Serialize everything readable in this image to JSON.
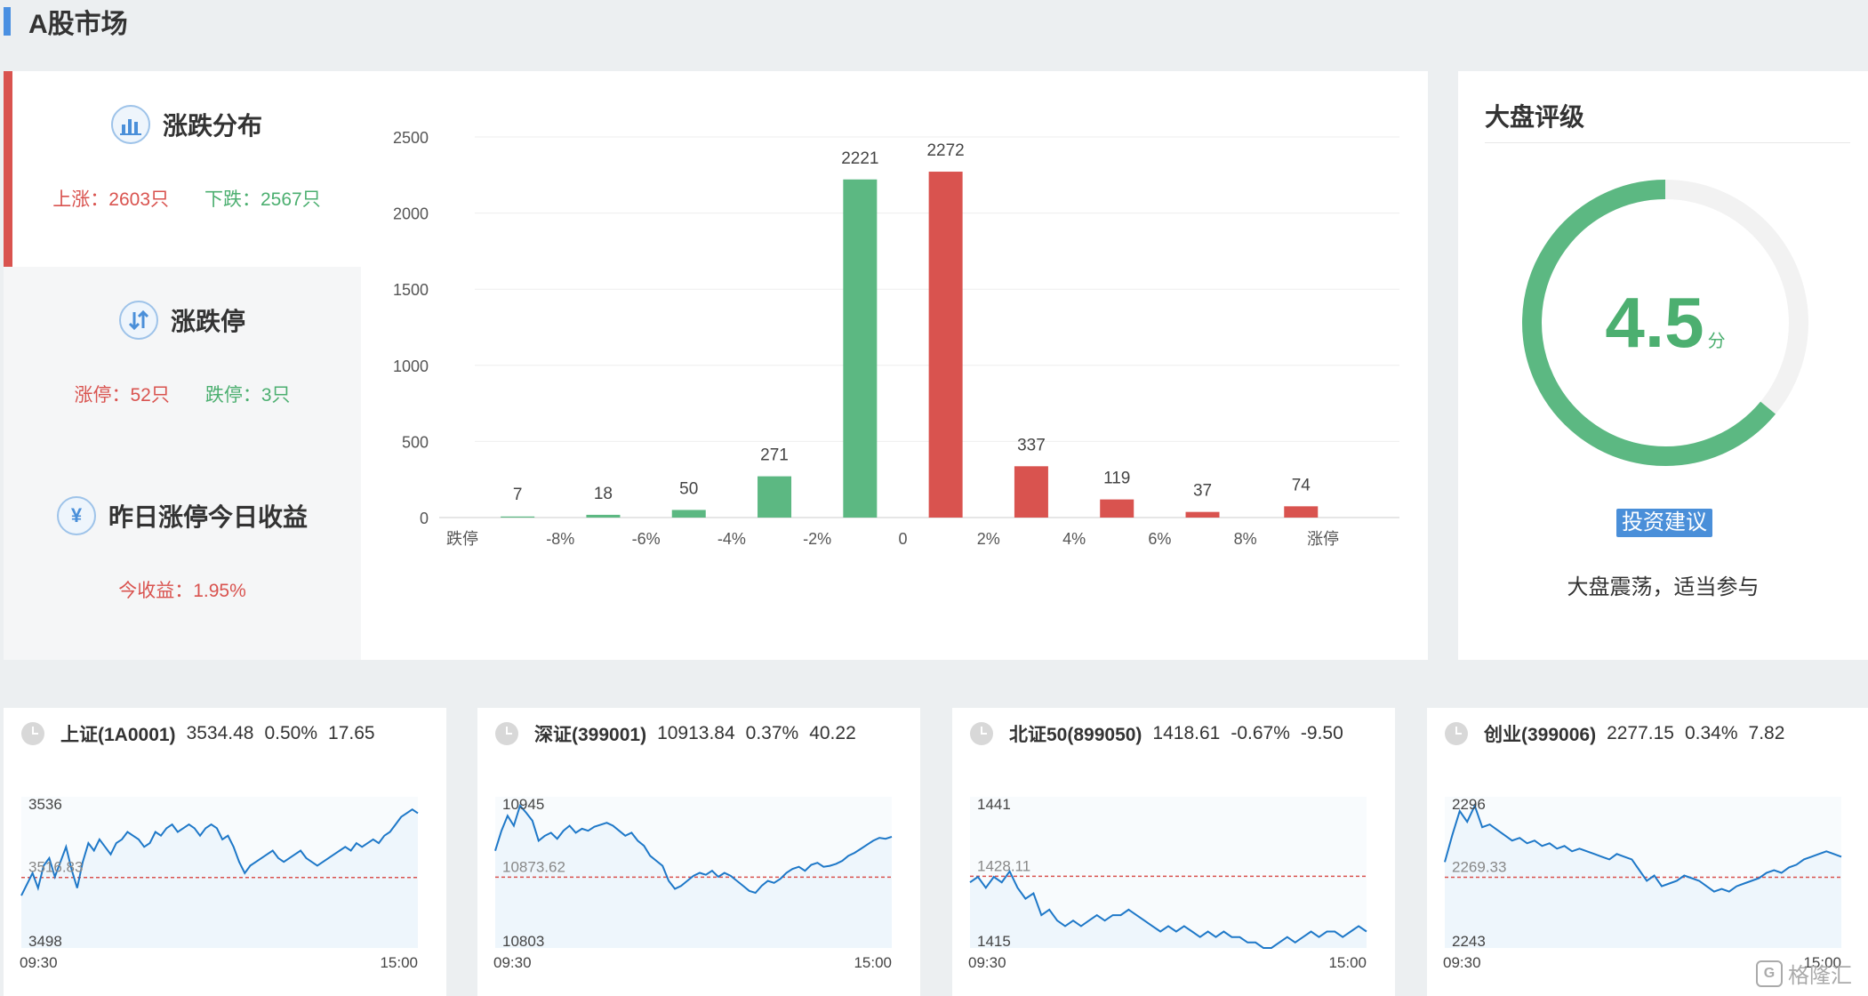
{
  "section_title": "A股市场",
  "distribution": {
    "title": "涨跌分布",
    "up_label": "上涨：2603只",
    "down_label": "下跌：2567只"
  },
  "limit": {
    "title": "涨跌停",
    "up_label": "涨停：52只",
    "down_label": "跌停：3只"
  },
  "yield": {
    "title": "昨日涨停今日收益",
    "label": "今收益：1.95%"
  },
  "chart_data": {
    "type": "bar",
    "categories": [
      "跌停",
      "-8%",
      "-6%",
      "-4%",
      "-2%",
      "0",
      "2%",
      "4%",
      "6%",
      "8%",
      "涨停"
    ],
    "bars": [
      {
        "value": 7,
        "color": "#5cb882",
        "slot": 0.5
      },
      {
        "value": 18,
        "color": "#5cb882",
        "slot": 1.5
      },
      {
        "value": 50,
        "color": "#5cb882",
        "slot": 2.5
      },
      {
        "value": 271,
        "color": "#5cb882",
        "slot": 3.5
      },
      {
        "value": 2221,
        "color": "#5cb882",
        "slot": 4.5
      },
      {
        "value": 2272,
        "color": "#d9534f",
        "slot": 5.5
      },
      {
        "value": 337,
        "color": "#d9534f",
        "slot": 6.5
      },
      {
        "value": 119,
        "color": "#d9534f",
        "slot": 7.5
      },
      {
        "value": 37,
        "color": "#d9534f",
        "slot": 8.5
      },
      {
        "value": 74,
        "color": "#d9534f",
        "slot": 9.65
      }
    ],
    "yticks": [
      0,
      500,
      1000,
      1500,
      2000,
      2500
    ],
    "ylim": [
      0,
      2500
    ],
    "grid": true
  },
  "rating": {
    "title": "大盘评级",
    "score": "4.5",
    "unit": "分",
    "fraction": 0.64,
    "advice_tag": "投资建议",
    "advice": "大盘震荡，适当参与",
    "color": "#5cb882"
  },
  "indices": [
    {
      "name": "上证(1A0001)",
      "price": "3534.48",
      "pct": "0.50%",
      "chg": "17.65",
      "high": "3536",
      "ref": "3516.83",
      "low": "3498",
      "start": "09:30",
      "end": "15:00",
      "series": [
        3512,
        3515,
        3518,
        3514,
        3520,
        3522,
        3517,
        3521,
        3525,
        3519,
        3514,
        3521,
        3526,
        3524,
        3527,
        3525,
        3523,
        3526,
        3527,
        3529,
        3528,
        3527,
        3525,
        3526,
        3529,
        3528,
        3530,
        3531,
        3529,
        3530,
        3531,
        3530,
        3528,
        3530,
        3531,
        3530,
        3527,
        3528,
        3525,
        3521,
        3518,
        3520,
        3521,
        3522,
        3523,
        3524,
        3522,
        3521,
        3522,
        3523,
        3524,
        3522,
        3521,
        3520,
        3521,
        3522,
        3523,
        3524,
        3525,
        3524,
        3526,
        3525,
        3526,
        3527,
        3526,
        3528,
        3529,
        3531,
        3533,
        3534,
        3535,
        3534
      ]
    },
    {
      "name": "深证(399001)",
      "price": "10913.84",
      "pct": "0.37%",
      "chg": "40.22",
      "high": "10945",
      "ref": "10873.62",
      "low": "10803",
      "start": "09:30",
      "end": "15:00",
      "series": [
        10900,
        10920,
        10935,
        10925,
        10945,
        10938,
        10930,
        10910,
        10915,
        10918,
        10912,
        10920,
        10925,
        10918,
        10922,
        10920,
        10924,
        10926,
        10928,
        10925,
        10920,
        10915,
        10918,
        10910,
        10905,
        10895,
        10890,
        10885,
        10870,
        10862,
        10865,
        10870,
        10875,
        10878,
        10876,
        10880,
        10874,
        10878,
        10875,
        10870,
        10865,
        10860,
        10858,
        10865,
        10870,
        10868,
        10872,
        10878,
        10882,
        10884,
        10880,
        10886,
        10888,
        10884,
        10885,
        10887,
        10890,
        10895,
        10898,
        10902,
        10906,
        10910,
        10913,
        10912,
        10914
      ]
    },
    {
      "name": "北证50(899050)",
      "price": "1418.61",
      "pct": "-0.67%",
      "chg": "-9.50",
      "high": "1441",
      "ref": "1428.11",
      "low": "1415",
      "start": "09:30",
      "end": "15:00",
      "series": [
        1427,
        1428,
        1426,
        1428,
        1427,
        1429,
        1426,
        1424,
        1425,
        1421,
        1422,
        1420,
        1419,
        1420,
        1419,
        1420,
        1421,
        1420,
        1421,
        1421,
        1422,
        1421,
        1420,
        1419,
        1418,
        1419,
        1418,
        1419,
        1418,
        1417,
        1418,
        1417,
        1418,
        1417,
        1417,
        1416,
        1416,
        1415,
        1415,
        1416,
        1417,
        1416,
        1417,
        1418,
        1417,
        1418,
        1418,
        1417,
        1418,
        1419,
        1418
      ]
    },
    {
      "name": "创业(399006)",
      "price": "2277.15",
      "pct": "0.34%",
      "chg": "7.82",
      "high": "2296",
      "ref": "2269.33",
      "low": "2243",
      "start": "09:30",
      "end": "15:00",
      "series": [
        2275,
        2285,
        2294,
        2290,
        2296,
        2288,
        2289,
        2287,
        2285,
        2283,
        2284,
        2282,
        2283,
        2281,
        2282,
        2280,
        2281,
        2279,
        2280,
        2279,
        2278,
        2277,
        2276,
        2278,
        2277,
        2276,
        2272,
        2268,
        2270,
        2266,
        2267,
        2268,
        2270,
        2269,
        2268,
        2266,
        2264,
        2265,
        2264,
        2266,
        2267,
        2268,
        2269,
        2271,
        2272,
        2271,
        2273,
        2274,
        2276,
        2277,
        2278,
        2279,
        2278,
        2277
      ]
    }
  ],
  "colors": {
    "up": "#d9534f",
    "down": "#4caf70",
    "line": "#1e78c8",
    "area": "#eaf4fb"
  },
  "watermark": "格隆汇"
}
